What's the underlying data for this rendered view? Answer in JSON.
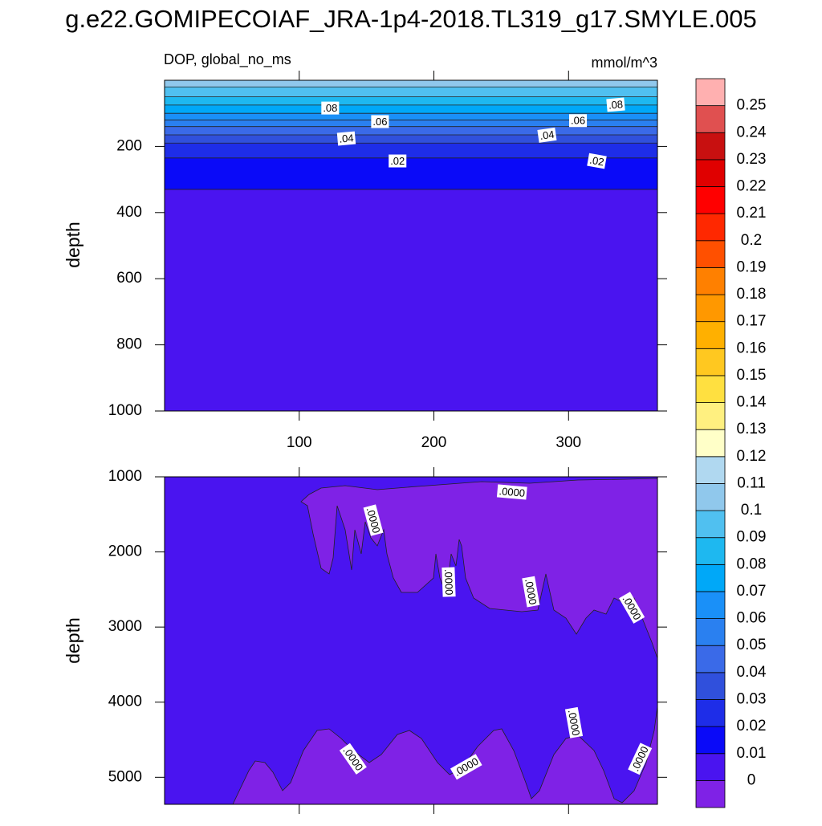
{
  "title": "g.e22.GOMIPECOIAF_JRA-1p4-2018.TL319_g17.SMYLE.005",
  "chart_data": [
    {
      "type": "contour",
      "subtitle_left": "DOP, global_no_ms",
      "subtitle_right": "mmol/m^3",
      "ylabel": "depth",
      "xlim": [
        0,
        366
      ],
      "ylim": [
        0,
        1000
      ],
      "xticks": [
        100,
        200,
        300
      ],
      "yticks": [
        200,
        400,
        600,
        800,
        1000
      ],
      "contours": [
        {
          "level": 0.1,
          "depth": 20
        },
        {
          "level": 0.09,
          "depth": 50
        },
        {
          "level": 0.08,
          "depth": 75
        },
        {
          "level": 0.07,
          "depth": 100
        },
        {
          "level": 0.06,
          "depth": 120
        },
        {
          "level": 0.05,
          "depth": 140
        },
        {
          "level": 0.04,
          "depth": 165
        },
        {
          "level": 0.03,
          "depth": 190
        },
        {
          "level": 0.02,
          "depth": 235
        },
        {
          "level": 0.01,
          "depth": 330
        }
      ],
      "contour_labels": [
        {
          "value": 0.08,
          "label": ".08",
          "x": 123,
          "depth": 84
        },
        {
          "value": 0.06,
          "label": ".06",
          "x": 160,
          "depth": 125
        },
        {
          "value": 0.04,
          "label": ".04",
          "x": 135,
          "depth": 176
        },
        {
          "value": 0.02,
          "label": ".02",
          "x": 173,
          "depth": 244
        },
        {
          "value": 0.08,
          "label": ".08",
          "x": 335,
          "depth": 74
        },
        {
          "value": 0.06,
          "label": ".06",
          "x": 307,
          "depth": 122
        },
        {
          "value": 0.04,
          "label": ".04",
          "x": 284,
          "depth": 166
        },
        {
          "value": 0.02,
          "label": ".02",
          "x": 321,
          "depth": 244
        }
      ]
    },
    {
      "type": "contour",
      "ylabel": "depth",
      "xlim": [
        0,
        366
      ],
      "ylim": [
        1000,
        5360
      ],
      "xticks": [
        100,
        200,
        300
      ],
      "yticks": [
        1000,
        2000,
        3000,
        4000,
        5000
      ],
      "contour_labels": [
        {
          "value": 0,
          "label": ".0000",
          "x": 258,
          "depth": 1203
        },
        {
          "value": 0,
          "label": ".0000",
          "x": 155,
          "depth": 1578
        },
        {
          "value": 0,
          "label": ".0000",
          "x": 211,
          "depth": 2401
        },
        {
          "value": 0,
          "label": ".0000",
          "x": 272,
          "depth": 2529
        },
        {
          "value": 0,
          "label": ".0000",
          "x": 347,
          "depth": 2743
        },
        {
          "value": 0,
          "label": ".0000",
          "x": 304,
          "depth": 4273
        },
        {
          "value": 0,
          "label": ".0000",
          "x": 140,
          "depth": 4754
        },
        {
          "value": 0,
          "label": ".0000",
          "x": 224,
          "depth": 4861
        },
        {
          "value": 0,
          "label": ".0000",
          "x": 353,
          "depth": 4754
        }
      ]
    }
  ],
  "colorbar": {
    "levels": [
      0,
      0.01,
      0.02,
      0.03,
      0.04,
      0.05,
      0.06,
      0.07,
      0.08,
      0.09,
      0.1,
      0.11,
      0.12,
      0.13,
      0.14,
      0.15,
      0.16,
      0.17,
      0.18,
      0.19,
      0.2,
      0.21,
      0.22,
      0.23,
      0.24,
      0.25
    ],
    "colors": [
      "#7f22e6",
      "#4a14f0",
      "#0a0af8",
      "#1e2de8",
      "#3050dc",
      "#3a6ae8",
      "#2a80f0",
      "#1a90f8",
      "#00a8f8",
      "#1eb8f0",
      "#50c0f0",
      "#90c8ec",
      "#b0d8f0",
      "#ffffc8",
      "#fff080",
      "#ffe040",
      "#ffc820",
      "#ffb000",
      "#ff9800",
      "#ff8000",
      "#ff5000",
      "#ff2800",
      "#ff0000",
      "#e00000",
      "#c81010",
      "#e05050",
      "#ffb0b0"
    ]
  }
}
